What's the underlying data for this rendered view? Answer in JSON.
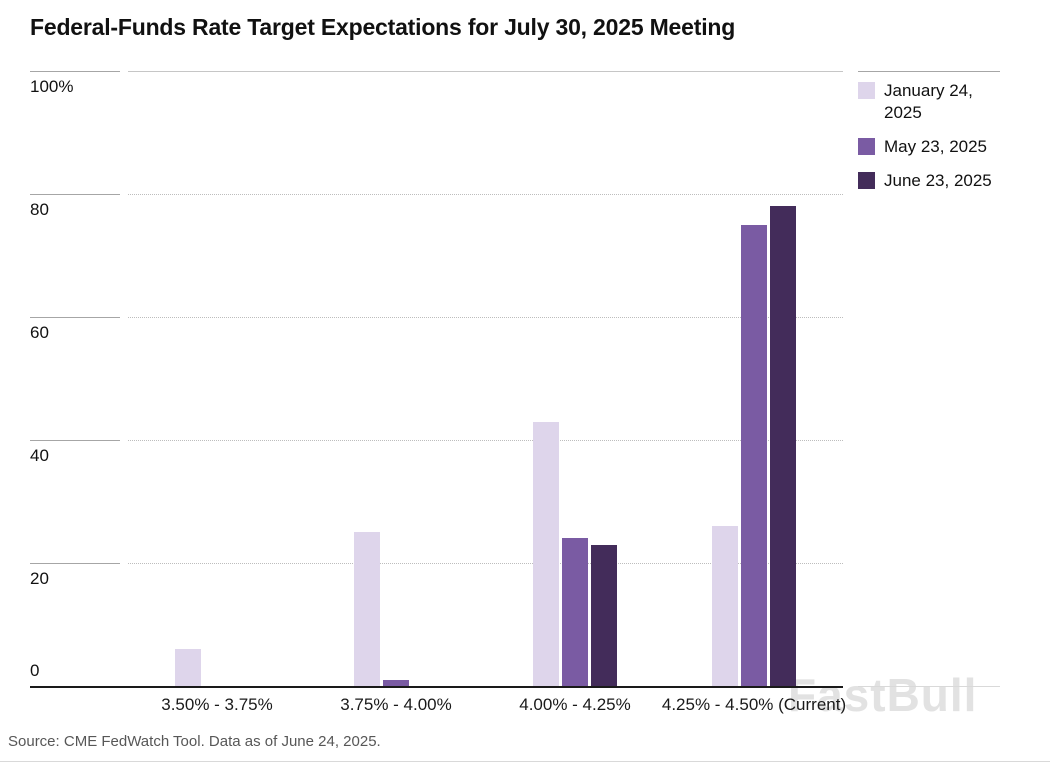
{
  "title": "Federal-Funds Rate Target Expectations for July 30, 2025 Meeting",
  "source": "Source: CME FedWatch Tool. Data as of June 24, 2025.",
  "watermark": "FastBull",
  "chart_data": {
    "type": "bar",
    "title": "Federal-Funds Rate Target Expectations for July 30, 2025 Meeting",
    "categories": [
      "3.50% - 3.75%",
      "3.75% - 4.00%",
      "4.00% - 4.25%",
      "4.25% - 4.50% (Current)"
    ],
    "series": [
      {
        "name": "January 24, 2025",
        "color": "#ded5eb",
        "values": [
          6,
          25,
          43,
          26
        ]
      },
      {
        "name": "May 23, 2025",
        "color": "#7a5ba3",
        "values": [
          0,
          1,
          24,
          75
        ]
      },
      {
        "name": "June 23, 2025",
        "color": "#432c5a",
        "values": [
          0,
          0,
          23,
          78
        ]
      }
    ],
    "xlabel": "",
    "ylabel": "",
    "ylim": [
      0,
      100
    ],
    "yticks": [
      0,
      20,
      40,
      60,
      80,
      100
    ],
    "ytick_labels": [
      "0",
      "20",
      "40",
      "60",
      "80",
      "100%"
    ],
    "grid": true,
    "legend_position": "top-right"
  }
}
